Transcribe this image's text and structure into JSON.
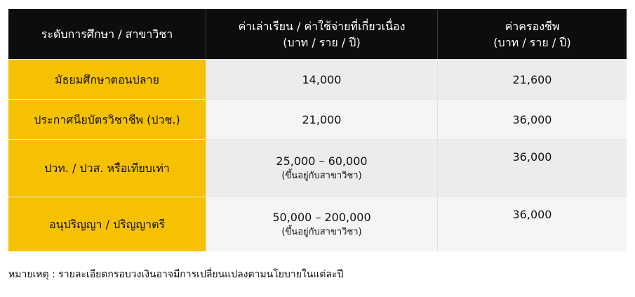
{
  "table": {
    "headers": {
      "level": "ระดับการศึกษา / สาขาวิชา",
      "tuition_line1": "ค่าเล่าเรียน / ค่าใช้จ่ายที่เกี่ยวเนื่อง",
      "tuition_line2": "(บาท / ราย / ปี)",
      "living_line1": "ค่าครองชีพ",
      "living_line2": "(บาท / ราย / ปี)"
    },
    "rows": [
      {
        "level": "มัธยมศึกษาตอนปลาย",
        "tuition": "14,000",
        "tuition_note": "",
        "living": "21,600"
      },
      {
        "level": "ประกาศนียบัตรวิชาชีพ (ปวช.)",
        "tuition": "21,000",
        "tuition_note": "",
        "living": "36,000"
      },
      {
        "level": "ปวท. / ปวส. หรือเทียบเท่า",
        "tuition": "25,000 – 60,000",
        "tuition_note": "(ขึ้นอยู่กับสาขาวิชา)",
        "living": "36,000"
      },
      {
        "level": "อนุปริญญา / ปริญญาตรี",
        "tuition": "50,000 – 200,000",
        "tuition_note": "(ขึ้นอยู่กับสาขาวิชา)",
        "living": "36,000"
      }
    ]
  },
  "note": "หมายเหตุ : รายละเอียดกรอบวงเงินอาจมีการเปลี่ยนแปลงตามนโยบายในแต่ละปี",
  "colors": {
    "header_bg": "#0d0d0d",
    "accent": "#f6c100"
  }
}
